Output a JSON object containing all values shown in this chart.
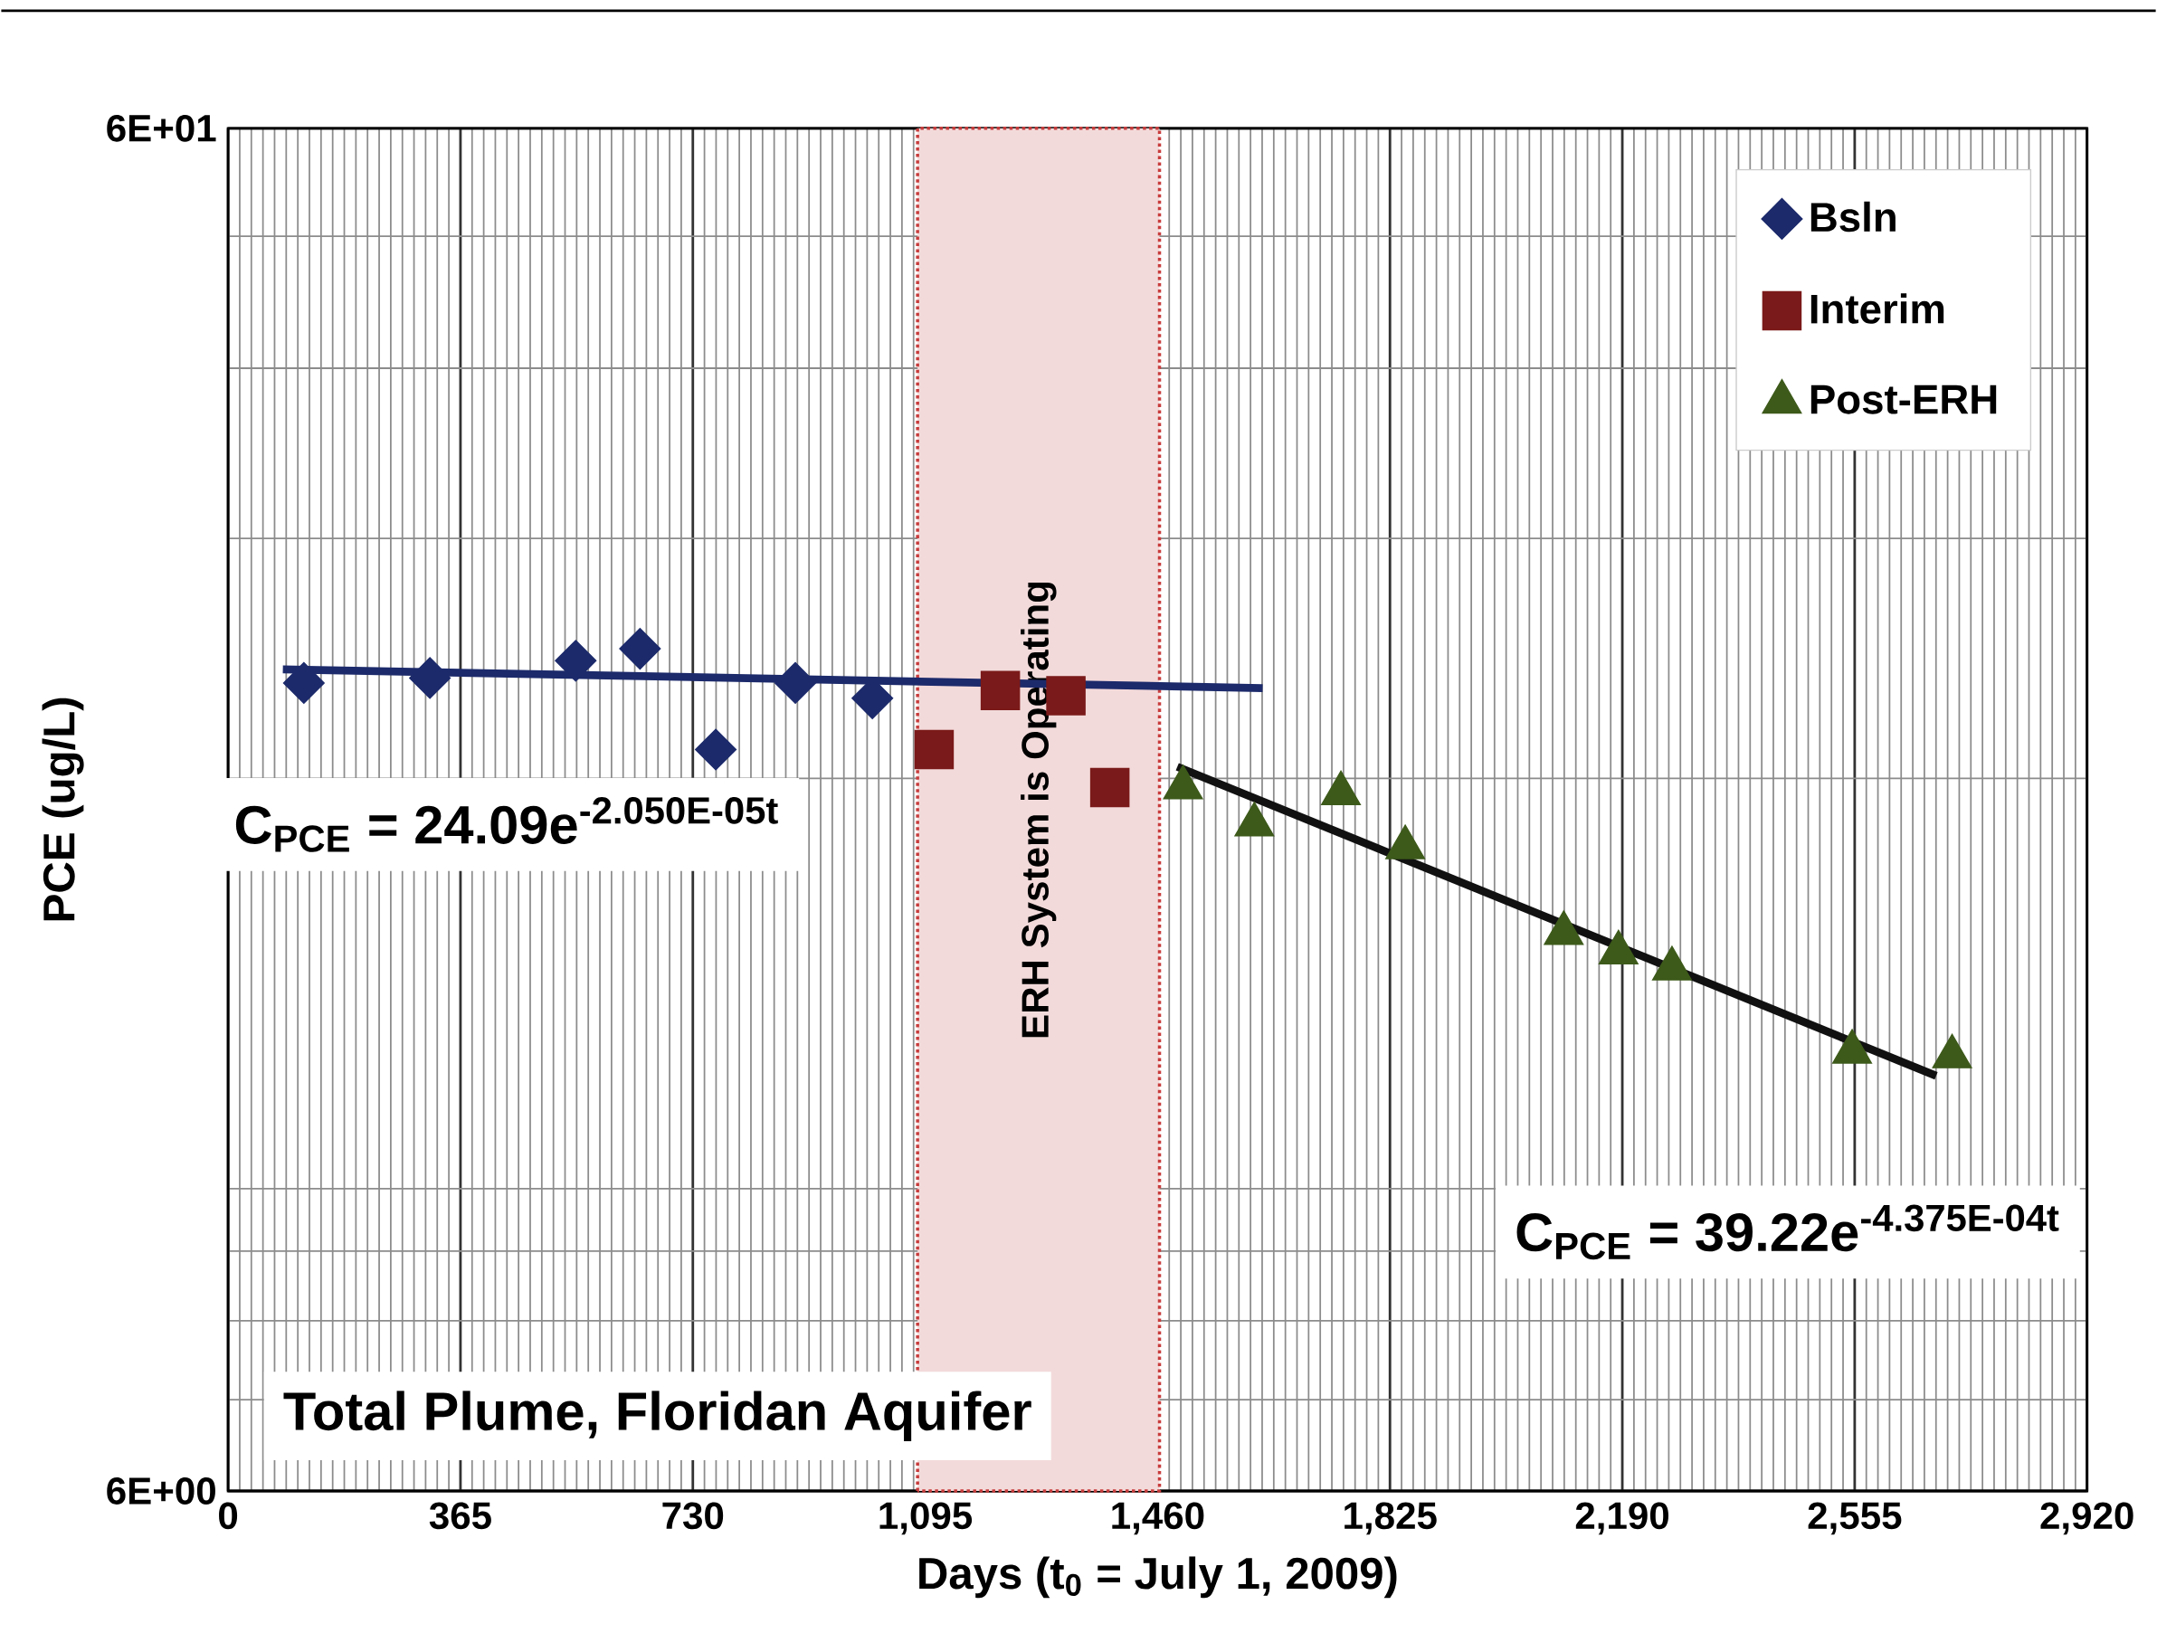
{
  "chart_data": {
    "type": "scatter",
    "xlabel": "Days (t$_{0}$ = July 1, 2009)",
    "ylabel": "PCE (ug/L)",
    "xlim": [
      0,
      2920
    ],
    "ylim": [
      6,
      60
    ],
    "log": "y",
    "grid": true,
    "legend": "top right",
    "xticks": [
      0,
      365,
      730,
      {
        "value": 1095,
        "label": "1,095"
      },
      {
        "value": 1460,
        "label": "1,460"
      },
      {
        "value": 1825,
        "label": "1,825"
      },
      {
        "value": 2190,
        "label": "2,190"
      },
      {
        "value": 2555,
        "label": "2,555"
      },
      {
        "value": 2920,
        "label": "2,920"
      }
    ],
    "yticks": [
      {
        "value": 6,
        "label": "6E+00"
      },
      {
        "value": 60,
        "label": "6E+01"
      }
    ],
    "series": [
      {
        "name": "Bsln",
        "marker": "diamond",
        "color": "#1c2a6b",
        "x": [
          119,
          317,
          546,
          647,
          766,
          891,
          1012
        ],
        "values": [
          23.5,
          23.7,
          24.4,
          24.9,
          21.0,
          23.5,
          22.9
        ]
      },
      {
        "name": "Interim",
        "marker": "square",
        "color": "#7b1a1a",
        "x": [
          1109,
          1213,
          1316,
          1385
        ],
        "values": [
          21.0,
          23.2,
          23.0,
          19.7
        ]
      },
      {
        "name": "Post-ERH",
        "marker": "triangle",
        "color": "#3d5a1a",
        "x": [
          1500,
          1612,
          1748,
          1849,
          2098,
          2184,
          2268,
          2551,
          2708
        ],
        "values": [
          19.7,
          18.5,
          19.5,
          17.8,
          15.4,
          14.9,
          14.5,
          12.6,
          12.5
        ]
      },
      {
        "type": "line",
        "color": "#1c2a6b",
        "x": [
          86,
          1625
        ],
        "values": [
          24.05,
          23.3
        ]
      },
      {
        "type": "line",
        "color": "#111111",
        "x": [
          1491,
          2683
        ],
        "values": [
          20.4,
          12.1
        ]
      }
    ],
    "bands": [
      {
        "axis": "x",
        "from": 1083,
        "to": 1463,
        "label": "ERH System is Operating",
        "color": "#f3dada"
      }
    ],
    "annotations": [
      "C$_{PCE}$ = 24.09e$^{-2.050E-05t}$",
      "C$_{PCE}$ = 39.22e$^{-4.375E-04t}$",
      "Total Plume, Floridan Aquifer"
    ]
  }
}
